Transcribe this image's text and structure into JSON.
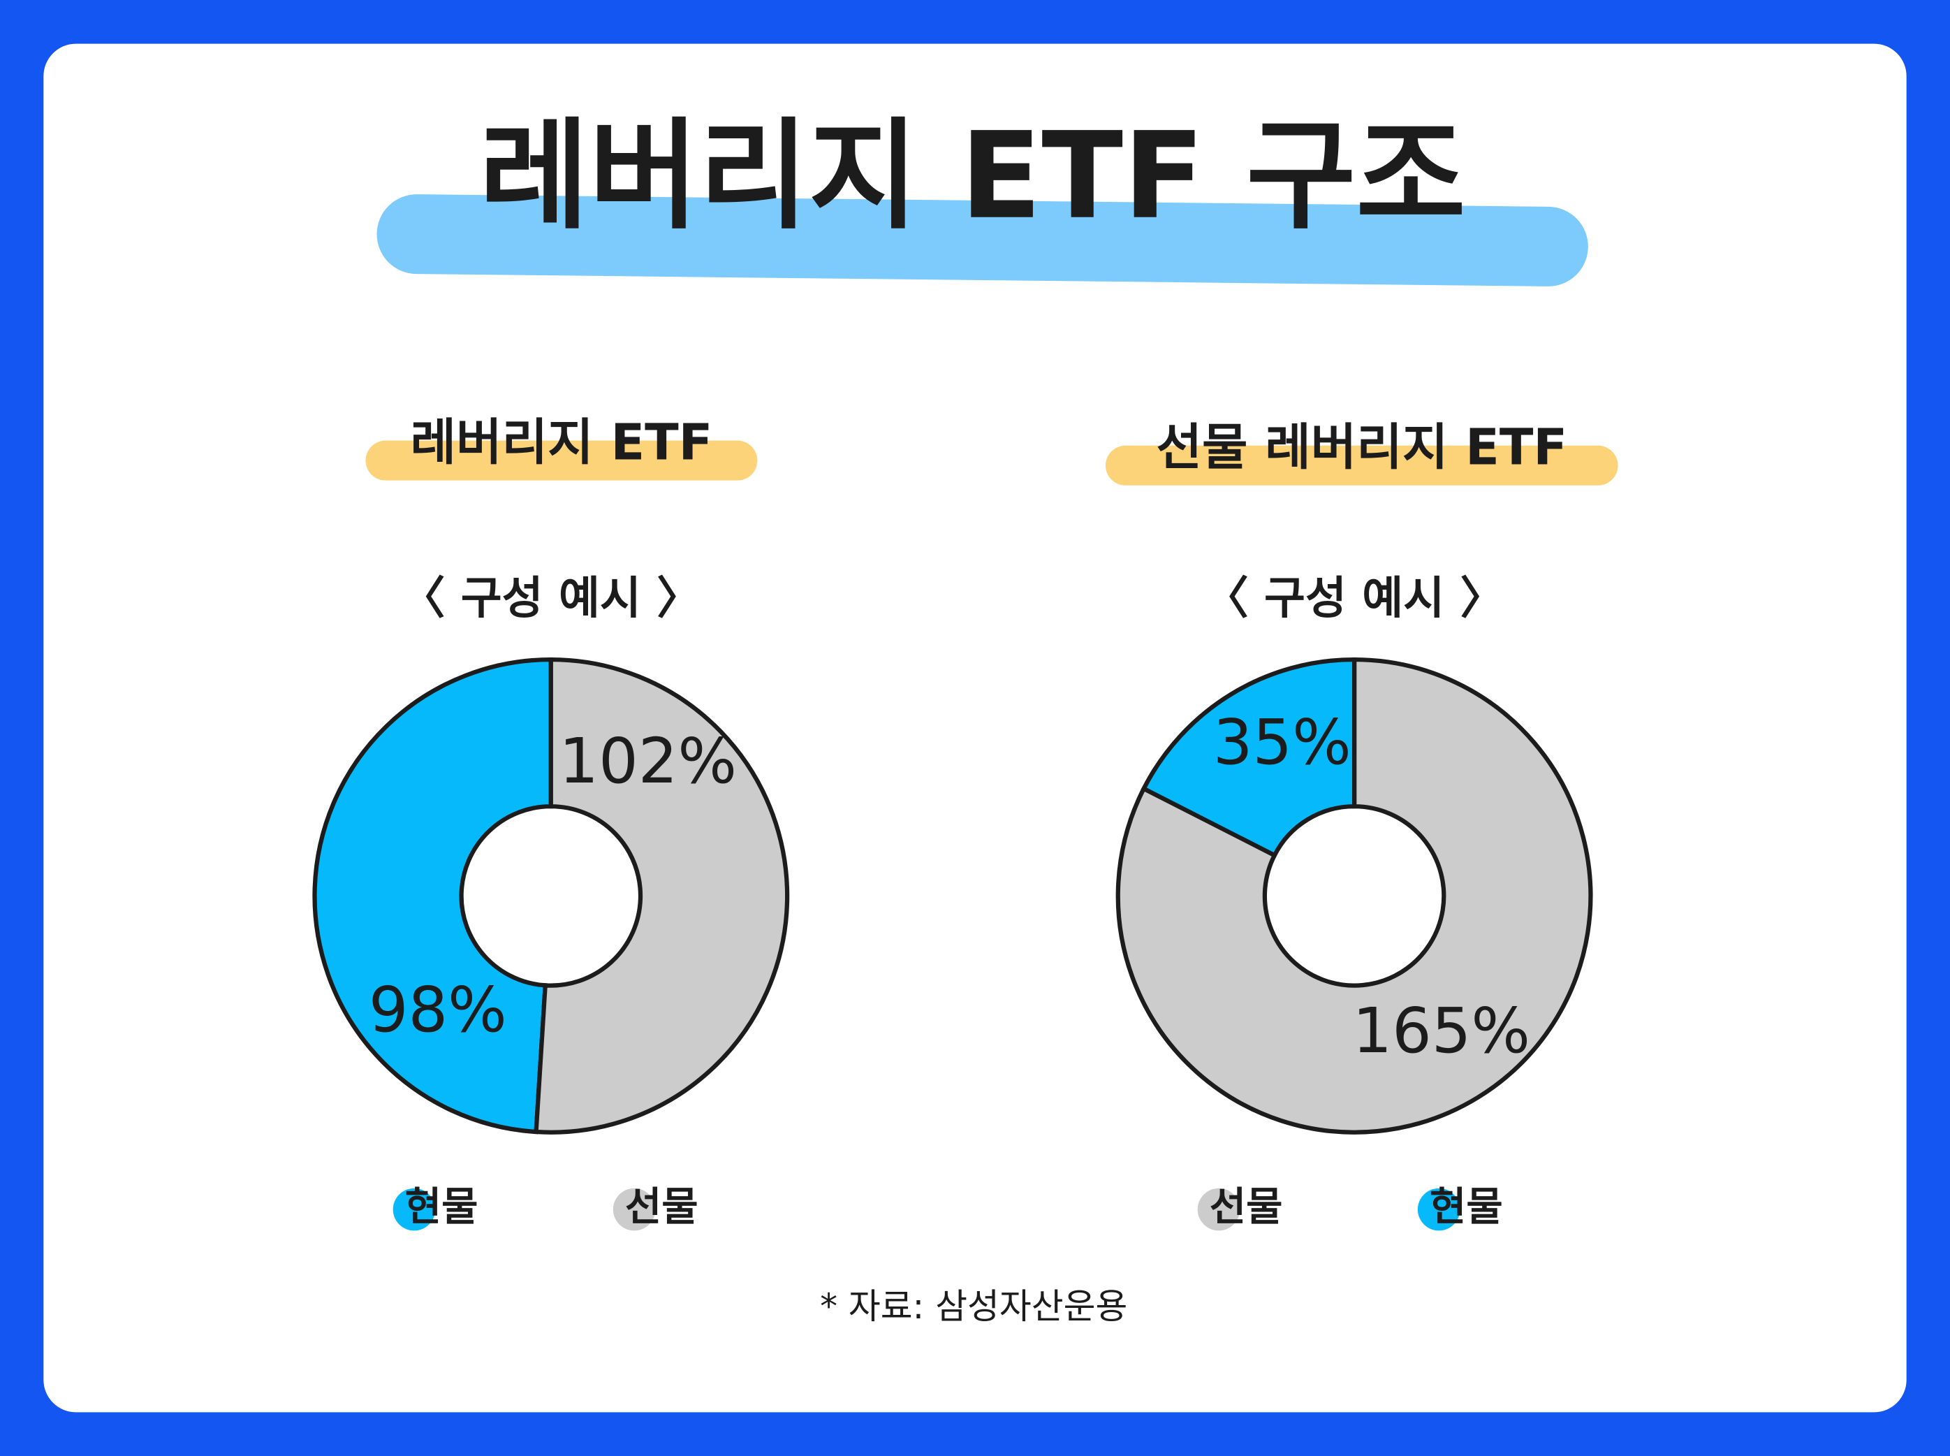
{
  "title": "레버리지 ETF 구조",
  "chart_data": [
    {
      "type": "pie",
      "title": "레버리지 ETF",
      "subtitle": "〈 구성 예시 〉",
      "categories": [
        "현물",
        "선물"
      ],
      "values": [
        98,
        102
      ],
      "value_labels": [
        "98%",
        "102%"
      ],
      "colors": [
        "#06b9fb",
        "#cccccc"
      ],
      "counterclockwise": true
    },
    {
      "type": "pie",
      "title": "선물 레버리지 ETF",
      "subtitle": "〈 구성 예시 〉",
      "categories": [
        "선물",
        "현물"
      ],
      "values": [
        165,
        35
      ],
      "value_labels": [
        "165%",
        "35%"
      ],
      "colors": [
        "#cccccc",
        "#06b9fb"
      ],
      "counterclockwise": false
    }
  ],
  "source": "* 자료: 삼성자산운용"
}
